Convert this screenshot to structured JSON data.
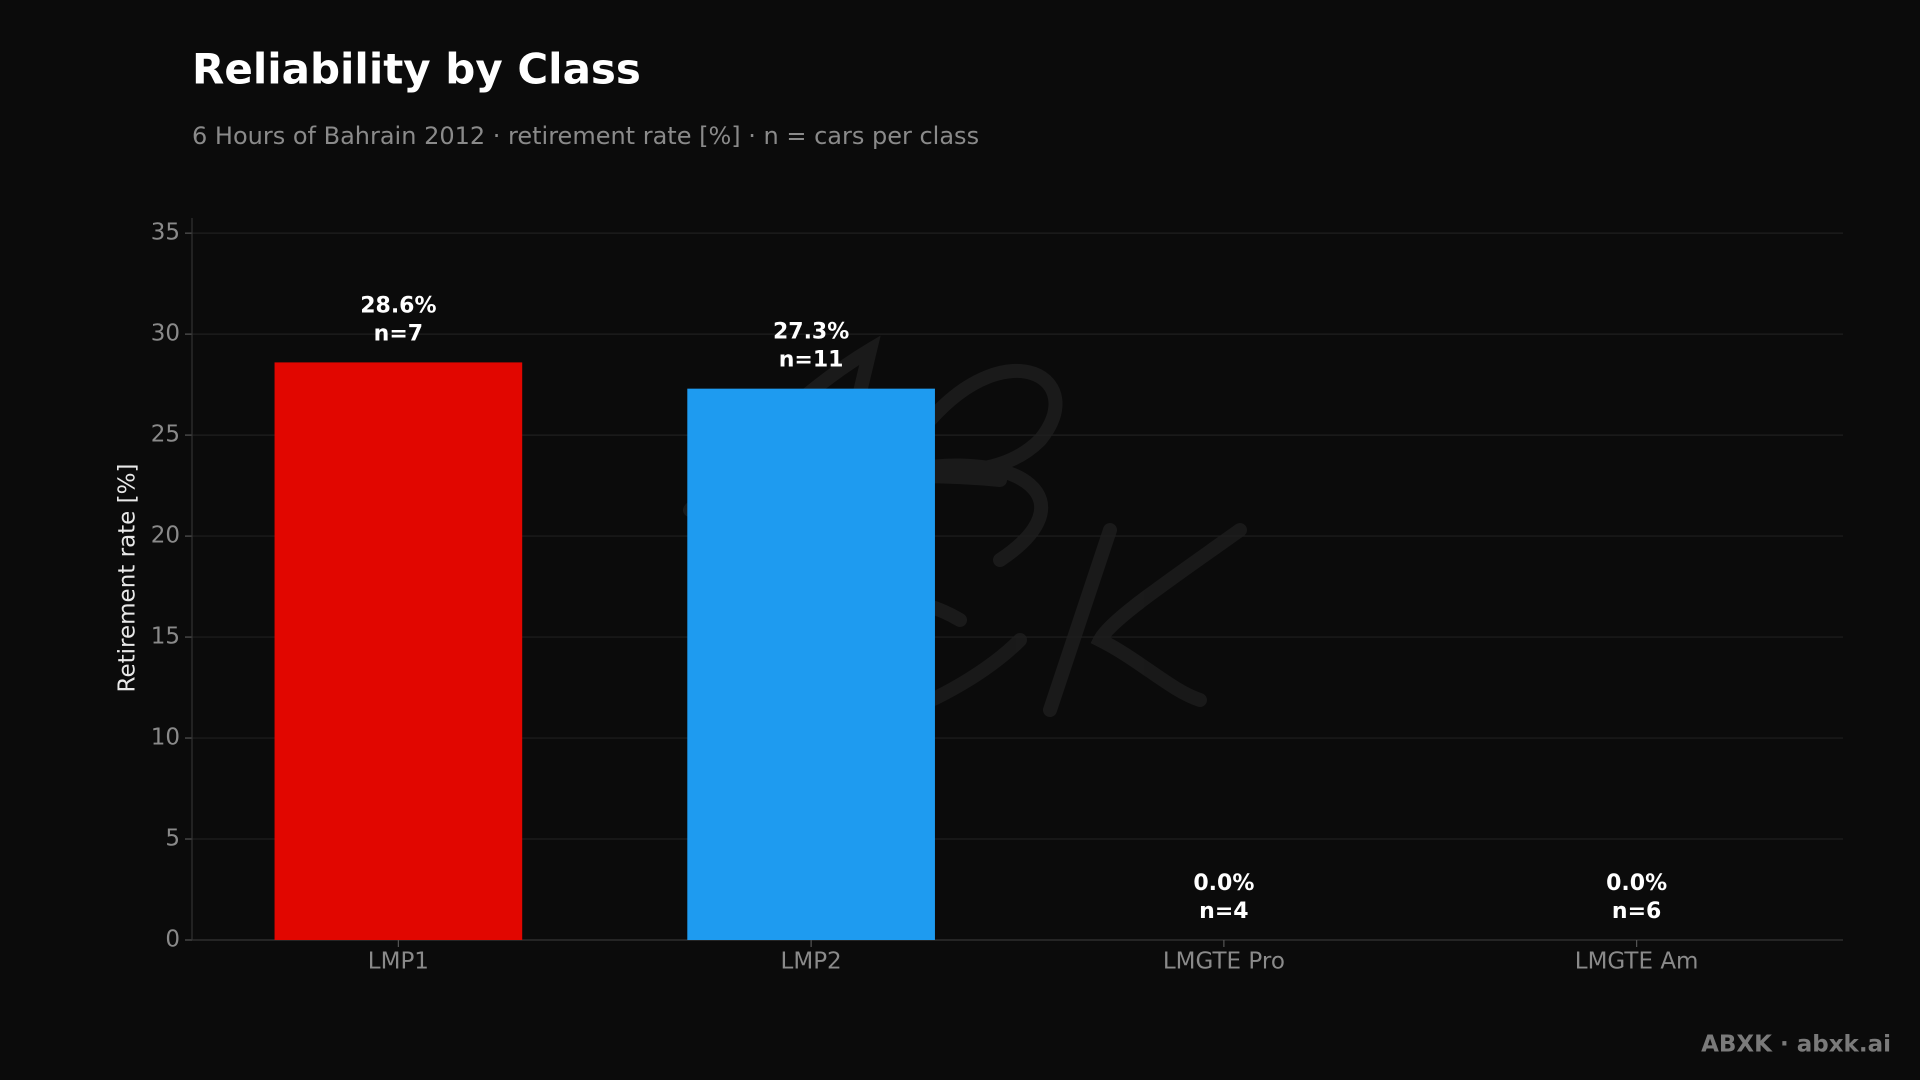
{
  "chart_data": {
    "type": "bar",
    "title": "Reliability by Class",
    "subtitle": "6 Hours of Bahrain 2012 · retirement rate [%] · n = cars per class",
    "y_label": "Retirement rate [%]",
    "categories": [
      "LMP1",
      "LMP2",
      "LMGTE Pro",
      "LMGTE Am"
    ],
    "values": [
      28.6,
      27.3,
      0,
      0
    ],
    "value_labels": [
      "28.6%",
      "27.3%",
      "0.0%",
      "0.0%"
    ],
    "n": [
      7,
      11,
      4,
      6
    ],
    "n_labels": [
      "n=7",
      "n=11",
      "n=4",
      "n=6"
    ],
    "colors": [
      "#e10600",
      "#1e9bf0",
      "#ff8c1a",
      "#2ecc71"
    ],
    "ylim": [
      0,
      35.75
    ],
    "yticks": [
      0,
      5,
      10,
      15,
      20,
      25,
      30,
      35
    ],
    "grid": true,
    "footer": "ABXK · abxk.ai"
  }
}
